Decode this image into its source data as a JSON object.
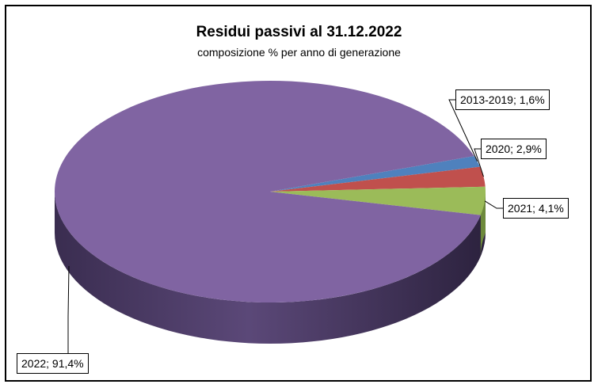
{
  "chart_data": {
    "type": "pie",
    "title": "Residui passivi al 31.12.2022",
    "subtitle": "composizione % per anno di generazione",
    "slices": [
      {
        "label": "2013-2019",
        "value": 1.6,
        "text": "2013-2019; 1,6%",
        "color": "#4f81bd"
      },
      {
        "label": "2020",
        "value": 2.9,
        "text": "2020; 2,9%",
        "color": "#c0504d"
      },
      {
        "label": "2021",
        "value": 4.1,
        "text": "2021; 4,1%",
        "color": "#9bbb59"
      },
      {
        "label": "2022",
        "value": 91.4,
        "text": "2022; 91,4%",
        "color": "#8064a2"
      }
    ]
  }
}
